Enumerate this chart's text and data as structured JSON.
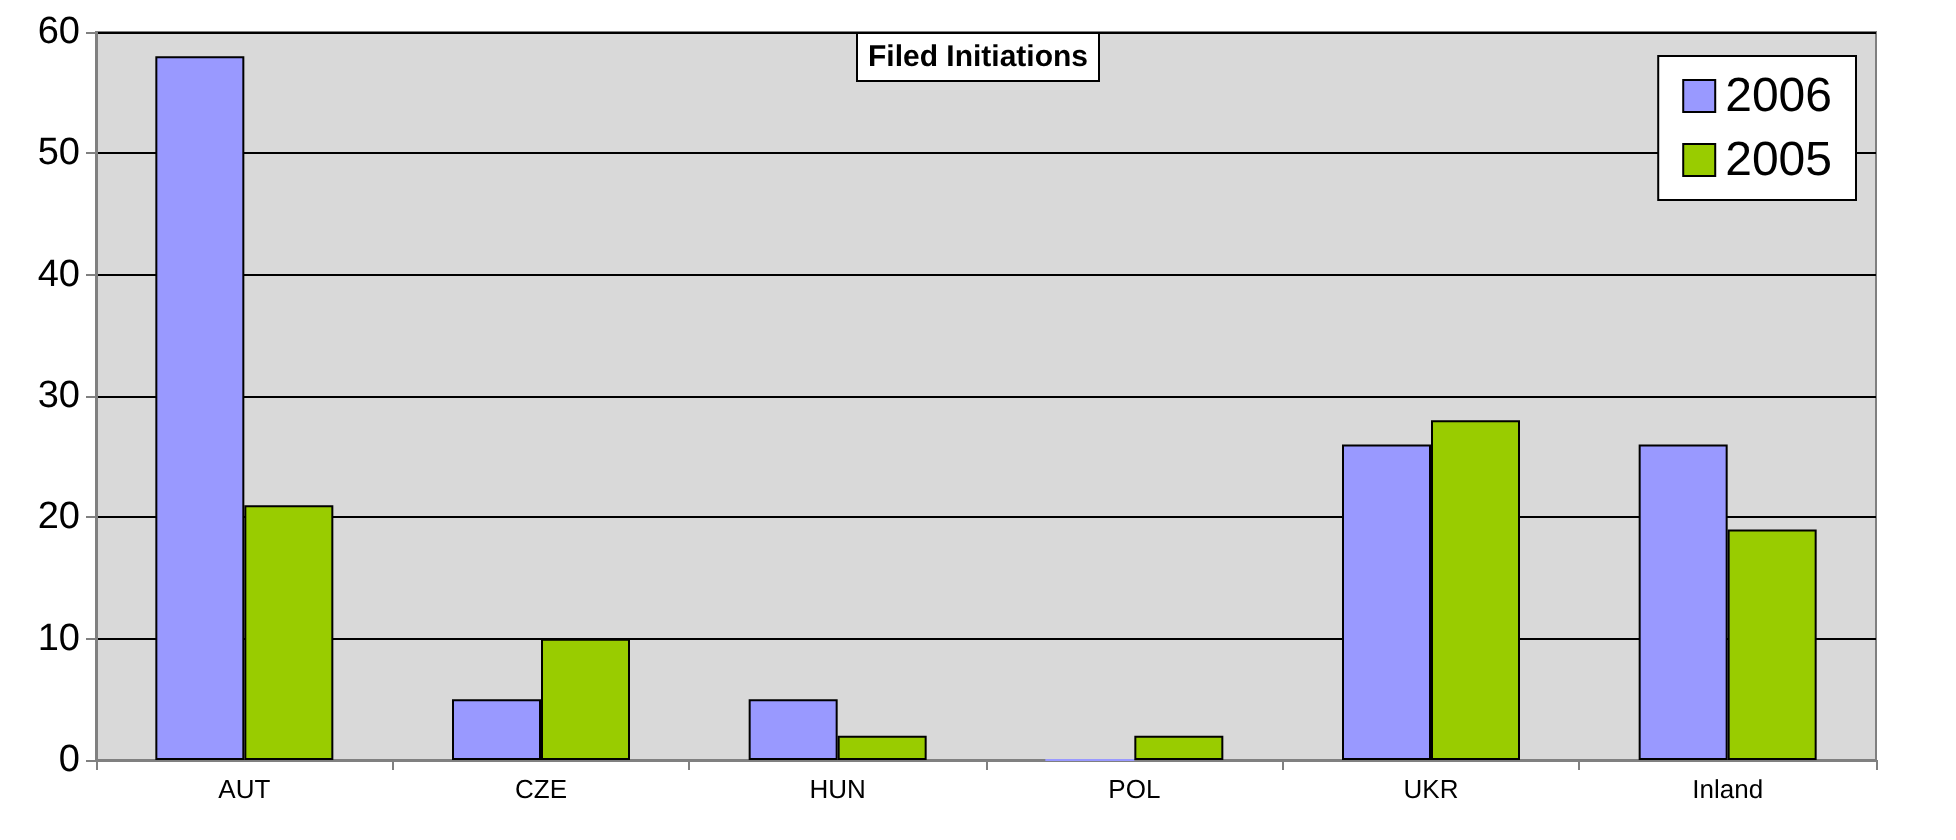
{
  "chart_data": {
    "type": "bar",
    "title": "Filed Initiations",
    "categories": [
      "AUT",
      "CZE",
      "HUN",
      "POL",
      "UKR",
      "Inland"
    ],
    "series": [
      {
        "name": "2006",
        "color": "#9999ff",
        "values": [
          58,
          5,
          5,
          0,
          26,
          26
        ]
      },
      {
        "name": "2005",
        "color": "#99cc00",
        "values": [
          21,
          10,
          2,
          2,
          28,
          19
        ]
      }
    ],
    "ylim": [
      0,
      60
    ],
    "yticks": [
      0,
      10,
      20,
      30,
      40,
      50,
      60
    ],
    "grid": "y",
    "legend": "top right"
  }
}
